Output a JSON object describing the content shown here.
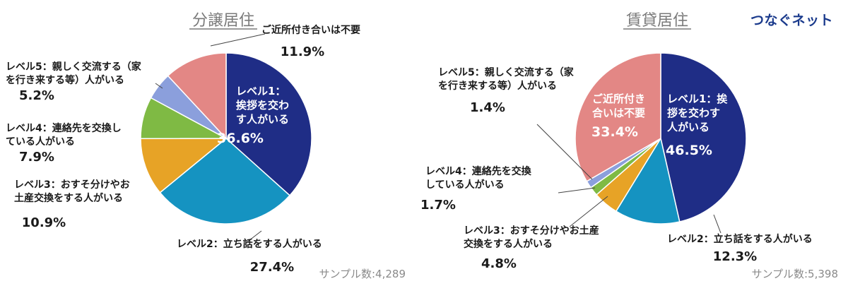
{
  "brand": "つなぐネット",
  "charts": [
    {
      "title": "分譲居住",
      "sample": "サンプル数:4,289",
      "slices": [
        {
          "label_lines": [
            "レベル1：",
            "挨拶を交わ",
            "す人がいる"
          ],
          "pct_text": "36.6%"
        },
        {
          "label_lines": [
            "レベル2：立ち話をする人がいる"
          ],
          "pct_text": "27.4%"
        },
        {
          "label_lines": [
            "レベル3：おすそ分けやお",
            "土産交換をする人がいる"
          ],
          "pct_text": "10.9%"
        },
        {
          "label_lines": [
            "レベル4：連絡先を交換し",
            "ている人がいる"
          ],
          "pct_text": "7.9%"
        },
        {
          "label_lines": [
            "レベル5：親しく交流する（家",
            "を行き来する等）人がいる"
          ],
          "pct_text": "5.2%"
        },
        {
          "label_lines": [
            "ご近所付き合いは不要"
          ],
          "pct_text": "11.9%"
        }
      ]
    },
    {
      "title": "賃貸居住",
      "sample": "サンプル数:5,398",
      "slices": [
        {
          "label_lines": [
            "レベル1：挨",
            "拶を交わす",
            "人がいる"
          ],
          "pct_text": "46.5%"
        },
        {
          "label_lines": [
            "レベル2：立ち話をする人がいる"
          ],
          "pct_text": "12.3%"
        },
        {
          "label_lines": [
            "レベル3：おすそ分けやお土産",
            "交換をする人がいる"
          ],
          "pct_text": "4.8%"
        },
        {
          "label_lines": [
            "レベル4：連絡先を交換",
            "している人がいる"
          ],
          "pct_text": "1.7%"
        },
        {
          "label_lines": [
            "レベル5：親しく交流する（家",
            "を行き来する等）人がいる"
          ],
          "pct_text": "1.4%"
        },
        {
          "label_lines": [
            "ご近所付き",
            "合いは不要"
          ],
          "pct_text": "33.4%"
        }
      ]
    }
  ],
  "chart_data": [
    {
      "type": "pie",
      "title": "分譲居住",
      "categories": [
        "レベル1：挨拶を交わす人がいる",
        "レベル2：立ち話をする人がいる",
        "レベル3：おすそ分けやお土産交換をする人がいる",
        "レベル4：連絡先を交換している人がいる",
        "レベル5：親しく交流する（家を行き来する等）人がいる",
        "ご近所付き合いは不要"
      ],
      "values": [
        36.6,
        27.4,
        10.9,
        7.9,
        5.2,
        11.9
      ],
      "colors": [
        "#1f2d86",
        "#1593c1",
        "#e7a326",
        "#7fba44",
        "#8b9fdc",
        "#e38785"
      ]
    },
    {
      "type": "pie",
      "title": "賃貸居住",
      "categories": [
        "レベル1：挨拶を交わす人がいる",
        "レベル2：立ち話をする人がいる",
        "レベル3：おすそ分けやお土産交換をする人がいる",
        "レベル4：連絡先を交換している人がいる",
        "レベル5：親しく交流する（家を行き来する等）人がいる",
        "ご近所付き合いは不要"
      ],
      "values": [
        46.5,
        12.3,
        4.8,
        1.7,
        1.4,
        33.4
      ],
      "colors": [
        "#1f2d86",
        "#1593c1",
        "#e7a326",
        "#7fba44",
        "#8b9fdc",
        "#e38785"
      ]
    }
  ]
}
